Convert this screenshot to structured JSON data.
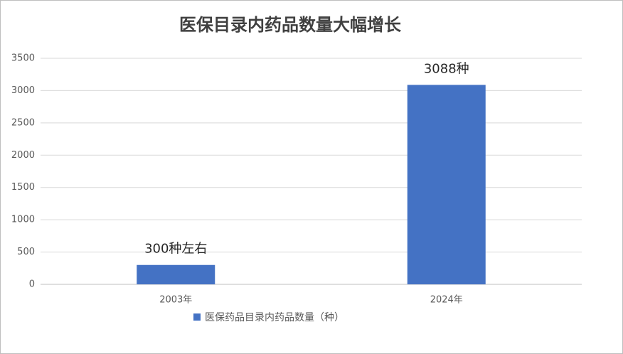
{
  "chart_data": {
    "type": "bar",
    "title": "医保目录内药品数量大幅增长",
    "categories": [
      "2003年",
      "2024年"
    ],
    "series": [
      {
        "name": "医保药品目录内药品数量（种）",
        "color": "#4472c4",
        "values": [
          300,
          3088
        ],
        "value_labels": [
          "300种左右",
          "3088种"
        ]
      }
    ],
    "ylim": [
      0,
      3500
    ],
    "yticks": [
      0,
      500,
      1000,
      1500,
      2000,
      2500,
      3000,
      3500
    ],
    "grid": true,
    "legend": "bottom"
  }
}
